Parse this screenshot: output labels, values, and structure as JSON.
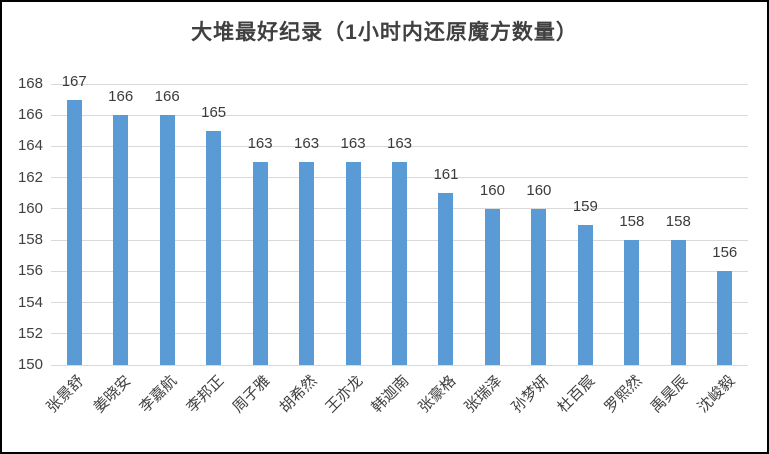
{
  "chart_data": {
    "type": "bar",
    "title": "大堆最好纪录（1小时内还原魔方数量）",
    "categories": [
      "张景舒",
      "姜晓安",
      "李嘉航",
      "李邦正",
      "周子雅",
      "胡希然",
      "王亦龙",
      "韩迦南",
      "张豪格",
      "张瑞泽",
      "孙梦妍",
      "杜百宸",
      "罗熙然",
      "禹昊辰",
      "沈峻毅"
    ],
    "values": [
      167,
      166,
      166,
      165,
      163,
      163,
      163,
      163,
      161,
      160,
      160,
      159,
      158,
      158,
      156
    ],
    "data_labels": [
      "167",
      "166",
      "166",
      "165",
      "163",
      "163",
      "163",
      "163",
      "161",
      "160",
      "160",
      "159",
      "158",
      "158",
      "156"
    ],
    "xlabel": "",
    "ylabel": "",
    "ylim": [
      150,
      168
    ],
    "yticks": [
      150,
      152,
      154,
      156,
      158,
      160,
      162,
      164,
      166,
      168
    ],
    "grid": "horizontal",
    "legend": "none",
    "colors": {
      "bar": "#5B9BD5",
      "gridline": "#D9D9D9",
      "title": "#404040",
      "tick_label": "#404040",
      "value_label": "#3B3B3B",
      "category_label": "#404040"
    }
  }
}
